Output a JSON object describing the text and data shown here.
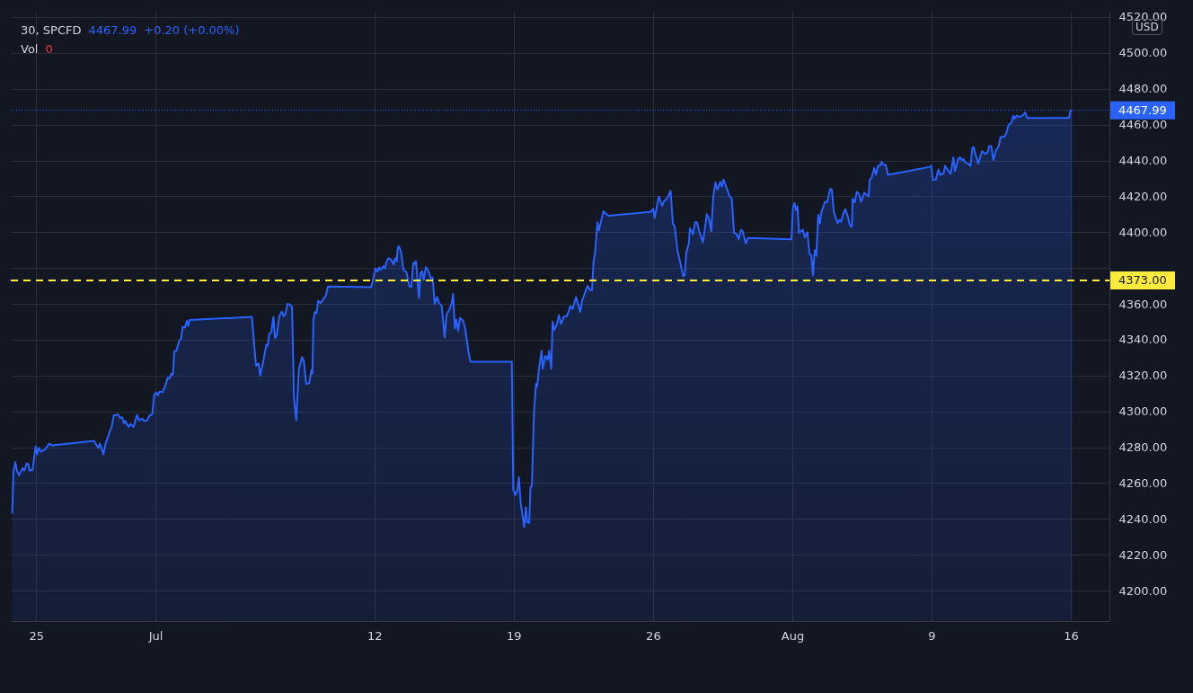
{
  "chart_data": {
    "type": "area",
    "x": [
      "--06-23T19:15",
      "--06-23T20:45",
      "--06-23T23:00",
      "--06-24T01:00",
      "--06-24T03:30",
      "--06-24T07:45",
      "--06-24T09:45",
      "--06-24T12:45",
      "--06-24T14:45",
      "--06-24T16:00",
      "--06-24T19:45",
      "--06-24T23:30",
      "--06-25T01:15",
      "--06-25T03:15",
      "--06-25T05:45",
      "--06-25T11:00",
      "--06-25T15:45",
      "--06-25T19:30",
      "--06-27T22:00",
      "--06-28T03:00",
      "--06-28T05:00",
      "--06-28T09:15",
      "--06-28T11:45",
      "--06-28T19:15",
      "--06-28T21:45",
      "--06-29T02:45",
      "--06-29T05:15",
      "--06-29T07:45",
      "--06-29T10:15",
      "--06-29T11:30",
      "--06-29T15:45",
      "--06-29T17:45",
      "--06-29T21:30",
      "--06-30T01:45",
      "--06-30T04:15",
      "--06-30T08:15",
      "--06-30T10:00",
      "--06-30T13:45",
      "--06-30T17:00",
      "--06-30T20:00",
      "--06-30T22:30",
      "--07-01T01:00",
      "--07-01T02:45",
      "--07-01T04:45",
      "--07-01T08:30",
      "--07-01T12:15",
      "--07-01T14:45",
      "--07-01T16:45",
      "--07-01T19:00",
      "--07-01T21:00",
      "--07-01T22:45",
      "--07-02T01:15",
      "--07-02T05:00",
      "--07-02T07:00",
      "--07-02T08:45",
      "--07-02T11:30",
      "--07-02T13:45",
      "--07-02T15:15",
      "--07-02T17:00",
      "--07-05T20:15",
      "--07-06T01:15",
      "--07-06T04:15",
      "--07-06T06:15",
      "--07-06T09:45",
      "--07-06T13:45",
      "--07-06T15:30",
      "--07-06T17:00",
      "--07-06T19:45",
      "--07-06T22:15",
      "--07-07T00:15",
      "--07-07T02:15",
      "--07-07T05:15",
      "--07-07T08:15",
      "--07-07T11:00",
      "--07-07T12:45",
      "--07-07T15:15",
      "--07-07T17:45",
      "--07-07T20:45",
      "--07-07T23:00",
      "--07-08T01:45",
      "--07-08T05:00",
      "--07-08T08:45",
      "--07-08T11:00",
      "--07-08T13:45",
      "--07-08T17:30",
      "--07-08T20:00",
      "--07-08T21:15",
      "--07-08T22:30",
      "--07-09T00:15",
      "--07-09T02:15",
      "--07-09T04:15",
      "--07-09T07:15",
      "--07-09T11:00",
      "--07-09T13:30",
      "--07-09T16:00",
      "--07-11T20:00",
      "--07-11T22:15",
      "--07-12T01:15",
      "--07-12T03:45",
      "--07-12T05:45",
      "--07-12T07:45",
      "--07-12T11:00",
      "--07-12T12:45",
      "--07-12T14:30",
      "--07-12T17:00",
      "--07-12T20:15",
      "--07-12T23:15",
      "--07-13T01:15",
      "--07-13T03:00",
      "--07-13T04:15",
      "--07-13T05:30",
      "--07-13T08:00",
      "--07-13T11:00",
      "--07-13T14:45",
      "--07-13T18:00",
      "--07-13T20:30",
      "--07-13T23:00",
      "--07-14T00:45",
      "--07-14T02:15",
      "--07-14T05:45",
      "--07-14T07:45",
      "--07-14T09:45",
      "--07-14T11:30",
      "--07-14T14:00",
      "--07-14T15:45",
      "--07-14T20:15",
      "--07-14T22:15",
      "--07-15T00:45",
      "--07-15T03:45",
      "--07-15T06:15",
      "--07-15T09:15",
      "--07-15T12:45",
      "--07-15T15:00",
      "--07-15T18:45",
      "--07-15T21:15",
      "--07-15T23:00",
      "--07-16T01:00",
      "--07-16T02:45",
      "--07-16T05:00",
      "--07-16T07:15",
      "--07-16T11:00",
      "--07-16T13:30",
      "--07-16T17:00",
      "--07-16T19:45",
      "--07-18T21:45",
      "--07-18T23:30",
      "--07-19T02:00",
      "--07-19T04:30",
      "--07-19T06:15",
      "--07-19T08:30",
      "--07-19T12:45",
      "--07-19T14:45",
      "--07-19T16:15",
      "--07-19T18:45",
      "--07-19T20:15",
      "--07-19T22:00",
      "--07-20T00:30",
      "--07-20T03:00",
      "--07-20T04:15",
      "--07-20T06:45",
      "--07-20T09:45",
      "--07-20T11:00",
      "--07-20T14:15",
      "--07-20T17:00",
      "--07-20T18:45",
      "--07-20T21:15",
      "--07-20T23:00",
      "--07-21T01:00",
      "--07-21T04:00",
      "--07-21T06:30",
      "--07-21T09:00",
      "--07-21T12:45",
      "--07-21T15:45",
      "--07-21T17:45",
      "--07-21T20:15",
      "--07-21T23:15",
      "--07-22T03:15",
      "--07-22T08:15",
      "--07-22T10:15",
      "--07-22T17:00",
      "--07-22T20:00",
      "--07-22T22:30",
      "--07-23T00:15",
      "--07-23T02:15",
      "--07-23T05:00",
      "--07-23T06:45",
      "--07-23T12:15",
      "--07-23T14:45",
      "--07-23T18:30",
      "--07-25T21:00",
      "--07-26T00:15",
      "--07-26T02:00",
      "--07-26T07:00",
      "--07-26T11:00",
      "--07-26T13:15",
      "--07-26T17:00",
      "--07-26T21:15",
      "--07-27T00:00",
      "--07-27T02:15",
      "--07-27T05:30",
      "--07-27T09:15",
      "--07-27T12:30",
      "--07-27T14:15",
      "--07-27T16:15",
      "--07-27T19:15",
      "--07-27T20:30",
      "--07-28T00:15",
      "--07-28T02:45",
      "--07-28T05:00",
      "--07-28T08:15",
      "--07-28T12:15",
      "--07-28T17:00",
      "--07-28T19:45",
      "--07-28T22:15",
      "--07-29T00:45",
      "--07-29T03:15",
      "--07-29T05:45",
      "--07-29T09:15",
      "--07-29T11:00",
      "--07-29T13:00",
      "--07-29T17:30",
      "--07-29T20:45",
      "--07-29T23:00",
      "--07-30T01:45",
      "--07-30T05:00",
      "--07-30T07:15",
      "--07-30T10:15",
      "--07-30T12:15",
      "--07-30T13:30",
      "--07-30T16:00",
      "--07-30T18:30",
      "--08-01T23:00",
      "--08-02T00:45",
      "--08-02T02:45",
      "--08-02T04:30",
      "--08-02T06:15",
      "--08-02T08:15",
      "--08-02T12:45",
      "--08-02T15:15",
      "--08-02T18:15",
      "--08-02T20:45",
      "--08-02T23:00",
      "--08-03T01:00",
      "--08-03T03:00",
      "--08-03T05:00",
      "--08-03T07:15",
      "--08-03T09:15",
      "--08-03T11:00",
      "--08-03T15:30",
      "--08-03T18:00",
      "--08-03T21:45",
      "--08-03T23:45",
      "--08-04T02:00",
      "--08-04T06:30",
      "--08-04T09:00",
      "--08-04T10:45",
      "--08-04T13:15",
      "--08-04T16:00",
      "--08-04T19:00",
      "--08-04T21:30",
      "--08-05T00:00",
      "--08-05T00:45",
      "--08-05T03:15",
      "--08-05T05:45",
      "--08-05T08:15",
      "--08-05T11:00",
      "--08-05T15:00",
      "--08-05T20:00",
      "--08-05T21:30",
      "--08-05T23:45",
      "--08-06T02:45",
      "--08-06T05:00",
      "--08-06T07:15",
      "--08-06T09:45",
      "--08-06T11:45",
      "--08-06T14:15",
      "--08-06T16:45",
      "--08-06T19:15",
      "--08-08T21:00",
      "--08-08T23:30",
      "--08-09T01:30",
      "--08-09T05:15",
      "--08-09T08:15",
      "--08-09T10:15",
      "--08-09T14:30",
      "--08-09T16:15",
      "--08-09T19:30",
      "--08-09T23:00",
      "--08-10T02:15",
      "--08-10T04:15",
      "--08-10T08:00",
      "--08-10T10:30",
      "--08-10T13:00",
      "--08-10T14:45",
      "--08-10T16:45",
      "--08-10T20:00",
      "--08-10T23:00",
      "--08-11T01:00",
      "--08-11T02:45",
      "--08-11T05:00",
      "--08-11T08:15",
      "--08-11T12:45",
      "--08-11T17:00",
      "--08-11T19:45",
      "--08-11T21:30",
      "--08-12T00:00",
      "--08-12T02:30",
      "--08-12T05:45",
      "--08-12T09:00",
      "--08-12T11:00",
      "--08-12T15:45",
      "--08-12T18:15",
      "--08-12T20:45",
      "--08-13T00:30",
      "--08-13T02:30",
      "--08-13T04:15",
      "--08-13T06:45",
      "--08-13T10:00",
      "--08-13T14:15",
      "--08-13T17:00",
      "--08-13T19:15",
      "--08-15T21:45",
      "--08-15T23:30",
      "--08-16T01:30"
    ],
    "series": [
      {
        "color": "#2962ff",
        "values": [
          4243,
          4266.3,
          4271.7,
          4266.7,
          4264.3,
          4268.3,
          4267,
          4271,
          4270.5,
          4267,
          4267.3,
          4280.5,
          4276,
          4279.7,
          4277.5,
          4278.8,
          4282,
          4281,
          4283.5,
          4279.7,
          4282,
          4276,
          4282,
          4291.7,
          4297.7,
          4298.3,
          4296.3,
          4296.7,
          4293.3,
          4294.7,
          4291.3,
          4293,
          4291.3,
          4298,
          4295,
          4296,
          4294.7,
          4295,
          4297.7,
          4298.3,
          4309.3,
          4310.5,
          4308.8,
          4311,
          4310.7,
          4314.7,
          4318.8,
          4318.3,
          4321,
          4320.5,
          4333.5,
          4334,
          4339.7,
          4340.5,
          4347.2,
          4346.7,
          4350.5,
          4347.7,
          4351,
          4352.7,
          4325.5,
          4326.8,
          4320,
          4327.3,
          4337.2,
          4336.7,
          4343,
          4344.2,
          4352.7,
          4341,
          4342.2,
          4353,
          4355.7,
          4353,
          4354.3,
          4360,
          4359.7,
          4358.3,
          4308,
          4295,
          4323.7,
          4330.3,
          4328,
          4315.2,
          4315.8,
          4323,
          4321,
          4351,
          4355.5,
          4354.7,
          4361.7,
          4360.5,
          4363,
          4364.7,
          4369.7,
          4369.3,
          4373,
          4379.7,
          4378,
          4380.3,
          4379,
          4381,
          4379.7,
          4383.3,
          4385.5,
          4384.7,
          4382,
          4385.5,
          4383.8,
          4391.3,
          4392.2,
          4389.3,
          4379.2,
          4377.5,
          4370,
          4369.3,
          4383,
          4382.2,
          4383.8,
          4363.3,
          4377.2,
          4378.3,
          4373.3,
          4380.5,
          4379.7,
          4374.3,
          4374.7,
          4360,
          4363.8,
          4360.3,
          4358.8,
          4341.3,
          4353.8,
          4357.2,
          4360.5,
          4365.5,
          4346.3,
          4351.3,
          4345,
          4352.2,
          4350.5,
          4346.3,
          4334.7,
          4327.7,
          4327.7,
          4256.3,
          4253.3,
          4256,
          4263.3,
          4248.8,
          4235.5,
          4246.5,
          4238.2,
          4237.8,
          4257.7,
          4258.8,
          4299.7,
          4315.5,
          4313.8,
          4324.7,
          4333.8,
          4323.8,
          4331,
          4328.8,
          4333.8,
          4323.8,
          4350,
          4345.5,
          4348.3,
          4353.8,
          4348.8,
          4353,
          4353,
          4355,
          4358.8,
          4357.2,
          4363.8,
          4355.5,
          4361.3,
          4370,
          4367.7,
          4367.7,
          4383,
          4388.8,
          4405.5,
          4401,
          4411.7,
          4410.5,
          4409.2,
          4411.3,
          4413,
          4408,
          4420,
          4414.7,
          4417.2,
          4418.8,
          4423,
          4404.7,
          4403,
          4390,
          4382.2,
          4375.5,
          4375.8,
          4388.8,
          4393.8,
          4402.2,
          4398.8,
          4405.5,
          4405.5,
          4399.7,
          4394.3,
          4410,
          4407.2,
          4400.5,
          4420,
          4427.7,
          4423.7,
          4428,
          4425.5,
          4429.3,
          4423.8,
          4419.7,
          4418.8,
          4399.7,
          4398.8,
          4396,
          4401.3,
          4400.5,
          4398,
          4393.8,
          4396.7,
          4396,
          4413.8,
          4416.3,
          4412.2,
          4414.3,
          4399.7,
          4401.3,
          4397.2,
          4400,
          4387.7,
          4387.2,
          4376,
          4390,
          4386.7,
          4409.7,
          4404.7,
          4411,
          4417,
          4416.7,
          4424.2,
          4423.7,
          4411.7,
          4405,
          4406.7,
          4405.8,
          4410,
          4412.8,
          4408.7,
          4403.7,
          4403,
          4418.7,
          4416.7,
          4422.5,
          4421.3,
          4417,
          4422,
          4420,
          4429.5,
          4430.3,
          4435.8,
          4432,
          4437,
          4437,
          4439.2,
          4437.5,
          4437.5,
          4432,
          4436.3,
          4437,
          4429.2,
          4429.3,
          4435,
          4432,
          4432.7,
          4437,
          4434.7,
          4432.5,
          4441.7,
          4434.2,
          4440.8,
          4441.7,
          4440,
          4440.7,
          4438.7,
          4438.3,
          4437,
          4446.7,
          4447.5,
          4443.3,
          4438.3,
          4445,
          4443.7,
          4444.7,
          4448,
          4448,
          4440.3,
          4445.8,
          4448,
          4453,
          4453.3,
          4455.3,
          4459.7,
          4461.3,
          4465,
          4463.3,
          4465,
          4464.2,
          4465.3,
          4466.7,
          4463.7,
          4463.7,
          4468,
          4467.99
        ]
      }
    ],
    "xlim": [
      "--06-23T17:30",
      "--08-17T22:30"
    ],
    "xticks": [
      {
        "value": "--06-25",
        "label": "25"
      },
      {
        "value": "--07-01",
        "label": "Jul"
      },
      {
        "value": "--07-12",
        "label": "12"
      },
      {
        "value": "--07-19",
        "label": "19"
      },
      {
        "value": "--07-26",
        "label": "26"
      },
      {
        "value": "--08-02",
        "label": "Aug"
      },
      {
        "value": "--08-09",
        "label": "9"
      },
      {
        "value": "--08-16",
        "label": "16"
      }
    ],
    "ylim": [
      4183,
      4523.5
    ],
    "yticks": [
      {
        "value": 4200,
        "label": "4200.00"
      },
      {
        "value": 4220,
        "label": "4220.00"
      },
      {
        "value": 4240,
        "label": "4240.00"
      },
      {
        "value": 4260,
        "label": "4260.00"
      },
      {
        "value": 4280,
        "label": "4280.00"
      },
      {
        "value": 4300,
        "label": "4300.00"
      },
      {
        "value": 4320,
        "label": "4320.00"
      },
      {
        "value": 4340,
        "label": "4340.00"
      },
      {
        "value": 4360,
        "label": "4360.00"
      },
      {
        "value": 4380,
        "label": null
      },
      {
        "value": 4400,
        "label": "4400.00"
      },
      {
        "value": 4420,
        "label": "4420.00"
      },
      {
        "value": 4440,
        "label": "4440.00"
      },
      {
        "value": 4460,
        "label": "4460.00"
      },
      {
        "value": 4480,
        "label": "4480.00"
      },
      {
        "value": 4500,
        "label": "4500.00"
      },
      {
        "value": 4520,
        "label": "4520.00"
      }
    ],
    "ref_lines": [
      {
        "axis": "y",
        "value": 4467.99,
        "label": "4467.99",
        "color": "#2962ff",
        "line_style": "dotted"
      },
      {
        "axis": "y",
        "value": 4373,
        "label": "4373.00",
        "color": "#ffeb3b",
        "line_style": "dashed"
      }
    ],
    "grid": true,
    "annotations": [
      "30, SPCFD",
      "4467.99",
      "+0.20 (+0.00%)",
      "Vol",
      "0",
      "USD"
    ]
  }
}
